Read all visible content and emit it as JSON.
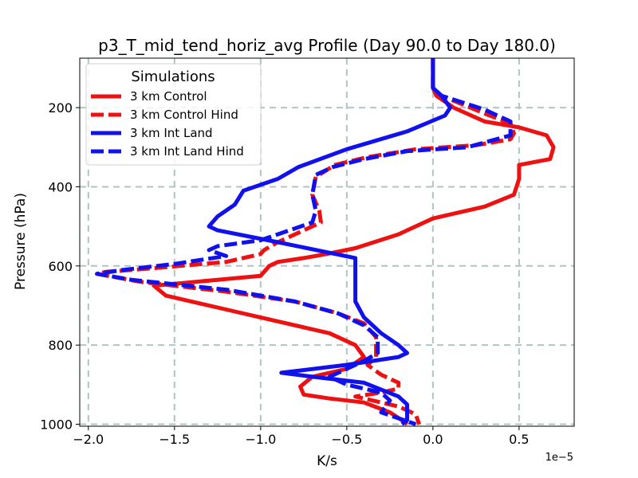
{
  "chart_data": {
    "type": "line",
    "title": "p3_T_mid_tend_horiz_avg Profile (Day 90.0 to Day 180.0)",
    "xlabel": "K/s",
    "ylabel": "Pressure (hPa)",
    "x_offset_label": "1e−5",
    "xlim": [
      -2.05,
      0.82
    ],
    "ylim": [
      1005,
      75
    ],
    "y_inverted": true,
    "grid": true,
    "x_ticks": [
      -2.0,
      -1.5,
      -1.0,
      -0.5,
      0.0,
      0.5
    ],
    "x_tick_labels": [
      "−2.0",
      "−1.5",
      "−1.0",
      "−0.5",
      "0.0",
      "0.5"
    ],
    "y_ticks": [
      200,
      400,
      600,
      800,
      1000
    ],
    "y_tick_labels": [
      "200",
      "400",
      "600",
      "800",
      "1000"
    ],
    "legend": {
      "title": "Simulations",
      "placement": "upper-left"
    },
    "series": [
      {
        "name": "3 km Control",
        "color": "#ee1111",
        "dash": "solid",
        "x": [
          0.0,
          0.0,
          0.02,
          0.12,
          0.3,
          0.5,
          0.66,
          0.7,
          0.68,
          0.5,
          0.5,
          0.47,
          0.3,
          0.1,
          0.0,
          -0.2,
          -0.45,
          -0.62,
          -0.75,
          -0.9,
          -0.95,
          -1.0,
          -1.25,
          -1.62,
          -1.55,
          -1.2,
          -0.9,
          -0.6,
          -0.45,
          -0.4,
          -0.5,
          -0.7,
          -0.77,
          -0.75,
          -0.6,
          -0.4,
          -0.25,
          -0.18,
          -0.15
        ],
        "y": [
          75,
          150,
          170,
          200,
          235,
          250,
          270,
          300,
          330,
          345,
          380,
          420,
          450,
          470,
          480,
          520,
          555,
          570,
          580,
          590,
          600,
          625,
          635,
          650,
          675,
          710,
          740,
          770,
          800,
          830,
          860,
          880,
          905,
          925,
          935,
          945,
          970,
          990,
          1000
        ]
      },
      {
        "name": "3 km Control Hind",
        "color": "#ee1111",
        "dash": "dashed",
        "x": [
          0.0,
          0.0,
          0.05,
          0.3,
          0.45,
          0.47,
          0.45,
          0.25,
          -0.1,
          -0.38,
          -0.57,
          -0.68,
          -0.7,
          -0.66,
          -0.65,
          -0.9,
          -0.98,
          -1.0,
          -1.2,
          -1.6,
          -1.9,
          -1.95,
          -1.7,
          -1.2,
          -0.8,
          -0.55,
          -0.4,
          -0.33,
          -0.33,
          -0.38,
          -0.3,
          -0.2,
          -0.2,
          -0.3,
          -0.45,
          -0.35,
          -0.2,
          -0.1,
          -0.08
        ],
        "y": [
          75,
          150,
          170,
          215,
          240,
          265,
          280,
          295,
          305,
          325,
          345,
          375,
          420,
          460,
          490,
          540,
          560,
          570,
          590,
          605,
          615,
          620,
          640,
          665,
          690,
          720,
          745,
          780,
          830,
          850,
          875,
          895,
          910,
          920,
          930,
          940,
          955,
          975,
          1000
        ]
      },
      {
        "name": "3 km Int Land",
        "color": "#1111ee",
        "dash": "solid",
        "x": [
          0.0,
          0.0,
          0.05,
          0.1,
          0.07,
          -0.15,
          -0.5,
          -0.78,
          -0.9,
          -1.1,
          -1.15,
          -1.25,
          -1.3,
          -1.25,
          -0.9,
          -0.45,
          -0.45,
          -0.45,
          -0.45,
          -0.4,
          -0.3,
          -0.2,
          -0.15,
          -0.2,
          -0.5,
          -0.88,
          -0.7,
          -0.4,
          -0.2,
          -0.15,
          -0.15,
          -0.15,
          -0.18
        ],
        "y": [
          75,
          150,
          170,
          200,
          220,
          260,
          305,
          350,
          380,
          410,
          445,
          475,
          500,
          510,
          540,
          580,
          630,
          660,
          690,
          730,
          770,
          800,
          820,
          830,
          850,
          870,
          880,
          895,
          930,
          950,
          970,
          990,
          1000
        ]
      },
      {
        "name": "3 km Int Land Hind",
        "color": "#1111ee",
        "dash": "dashed",
        "x": [
          0.0,
          0.0,
          0.05,
          0.3,
          0.45,
          0.45,
          0.2,
          -0.15,
          -0.4,
          -0.58,
          -0.68,
          -0.7,
          -0.68,
          -0.7,
          -0.9,
          -1.0,
          -1.25,
          -1.3,
          -1.2,
          -1.5,
          -1.8,
          -1.95,
          -1.75,
          -1.2,
          -0.8,
          -0.55,
          -0.4,
          -0.32,
          -0.32,
          -0.4,
          -0.5,
          -0.6,
          -0.5,
          -0.3,
          -0.25,
          -0.3,
          -0.1
        ],
        "y": [
          75,
          150,
          170,
          205,
          235,
          270,
          300,
          310,
          330,
          350,
          370,
          420,
          460,
          490,
          520,
          535,
          550,
          560,
          575,
          595,
          610,
          620,
          635,
          660,
          690,
          720,
          750,
          780,
          820,
          840,
          860,
          880,
          900,
          920,
          940,
          970,
          1000
        ]
      }
    ]
  }
}
